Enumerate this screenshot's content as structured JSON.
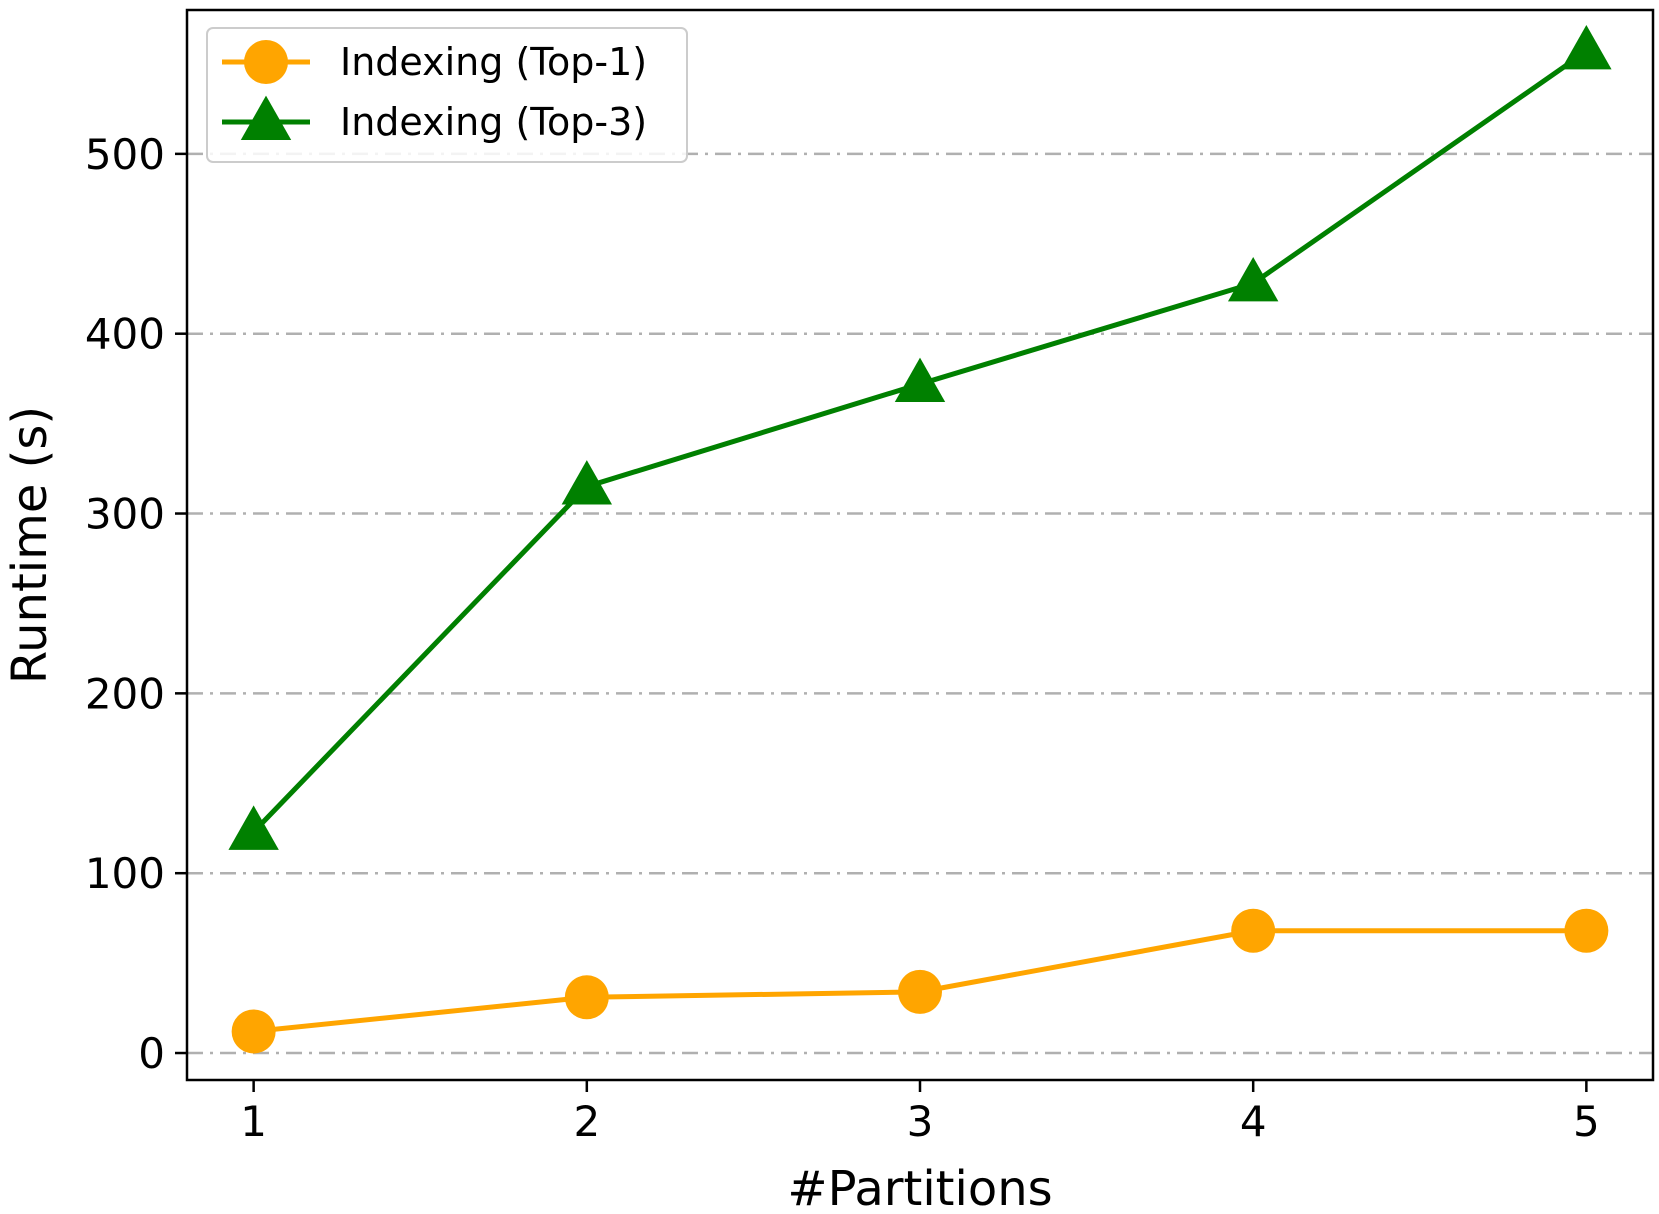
{
  "chart_data": {
    "type": "line",
    "title": "",
    "xlabel": "#Partitions",
    "ylabel": "Runtime (s)",
    "x": [
      1,
      2,
      3,
      4,
      5
    ],
    "xticks": [
      "1",
      "2",
      "3",
      "4",
      "5"
    ],
    "yticks": [
      "0",
      "100",
      "200",
      "300",
      "400",
      "500"
    ],
    "xlim": [
      0.8,
      5.2
    ],
    "ylim": [
      -15,
      580
    ],
    "grid": "horizontal dash-dot",
    "legend_position": "top-left",
    "series": [
      {
        "name": "Indexing (Top-1)",
        "values": [
          12,
          31,
          34,
          68,
          68
        ],
        "color": "#FFA500",
        "marker": "circle"
      },
      {
        "name": "Indexing (Top-3)",
        "values": [
          123,
          315,
          372,
          428,
          557
        ],
        "color": "#008000",
        "marker": "triangle"
      }
    ]
  }
}
